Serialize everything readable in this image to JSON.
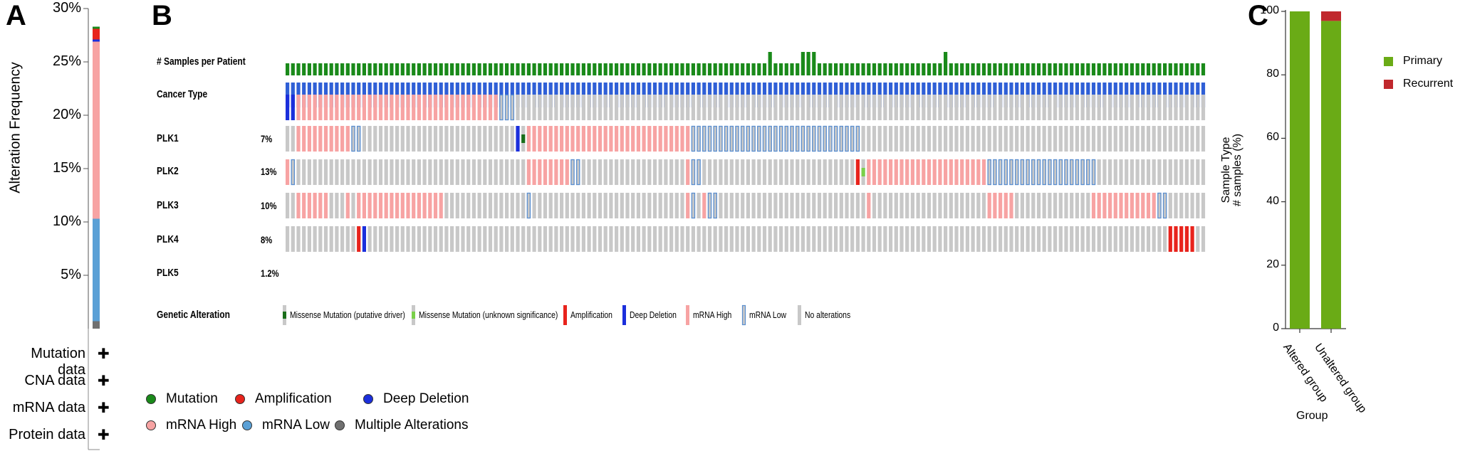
{
  "panel_letters": {
    "a": "A",
    "b": "B",
    "c": "C"
  },
  "panel_a": {
    "ylabel": "Alteration Frequency",
    "yticks": [
      "30%",
      "25%",
      "20%",
      "15%",
      "10%",
      "5%"
    ],
    "rows": [
      "Mutation data",
      "CNA data",
      "mRNA data",
      "Protein data"
    ],
    "row_mark": "✚",
    "legend": [
      {
        "label": "Mutation",
        "color": "#1a8a1a"
      },
      {
        "label": "Amplification",
        "color": "#e8231c"
      },
      {
        "label": "Deep Deletion",
        "color": "#1b2fdc"
      },
      {
        "label": "mRNA High",
        "color": "#f7a3a3"
      },
      {
        "label": "mRNA Low",
        "color": "#5aa0d6"
      },
      {
        "label": "Multiple Alterations",
        "color": "#707070"
      }
    ]
  },
  "panel_b": {
    "track_labels": [
      "# Samples per Patient",
      "Cancer Type"
    ],
    "genes": [
      {
        "name": "PLK1",
        "pct": "7%"
      },
      {
        "name": "PLK2",
        "pct": "13%"
      },
      {
        "name": "PLK3",
        "pct": "10%"
      },
      {
        "name": "PLK4",
        "pct": "8%"
      },
      {
        "name": "PLK5",
        "pct": "1.2%"
      }
    ],
    "genetic_alteration_label": "Genetic Alteration",
    "legend": [
      "Missense Mutation (putative driver)",
      "Missense Mutation (unknown significance)",
      "Amplification",
      "Deep Deletion",
      "mRNA High",
      "mRNA Low",
      "No alterations"
    ],
    "colors": {
      "samples": "#1a8a1a",
      "cancer": "#2f5fd6",
      "none": "#c8c8c8",
      "amp": "#e8231c",
      "del": "#1b2fdc",
      "mrna_high": "#f7a3a3",
      "mrna_low_border": "#5b8fd0",
      "driver": "#1a6e1a",
      "vus": "#7ad04a"
    }
  },
  "panel_c": {
    "ylabel_1": "Sample Type",
    "ylabel_2": "# samples (%)",
    "xlabel": "Group",
    "yticks": [
      "100",
      "80",
      "60",
      "40",
      "20",
      "0"
    ],
    "categories": [
      "Altered group",
      "Unaltered group"
    ],
    "legend": [
      {
        "label": "Primary",
        "color": "#6aab16"
      },
      {
        "label": "Recurrent",
        "color": "#c0282d"
      }
    ]
  },
  "chart_data": [
    {
      "type": "bar",
      "title": "",
      "ylabel": "Alteration Frequency",
      "ylim": [
        0,
        30
      ],
      "categories": [
        ""
      ],
      "series": [
        {
          "name": "Multiple Alterations",
          "values": [
            0.7
          ]
        },
        {
          "name": "mRNA Low",
          "values": [
            9.6
          ]
        },
        {
          "name": "mRNA High",
          "values": [
            16.6
          ]
        },
        {
          "name": "Deep Deletion",
          "values": [
            0.2
          ]
        },
        {
          "name": "Amplification",
          "values": [
            1.0
          ]
        },
        {
          "name": "Mutation",
          "values": [
            0.2
          ]
        }
      ]
    },
    {
      "type": "table",
      "title": "",
      "rows": [
        "PLK1",
        "PLK2",
        "PLK3",
        "PLK4",
        "PLK5"
      ],
      "values": [
        "7%",
        "13%",
        "10%",
        "8%",
        "1.2%"
      ]
    },
    {
      "type": "bar",
      "title": "",
      "xlabel": "Group",
      "ylabel": "Sample Type # samples (%)",
      "ylim": [
        0,
        100
      ],
      "categories": [
        "Altered group",
        "Unaltered group"
      ],
      "series": [
        {
          "name": "Primary",
          "values": [
            100,
            97
          ]
        },
        {
          "name": "Recurrent",
          "values": [
            0,
            3
          ]
        }
      ]
    }
  ]
}
